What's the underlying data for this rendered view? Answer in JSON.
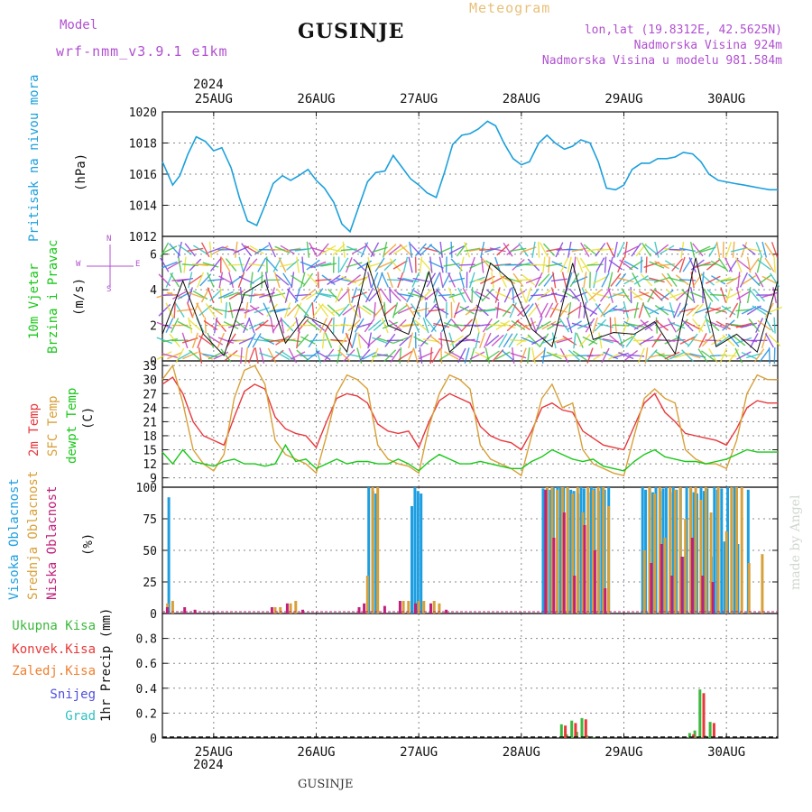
{
  "header": {
    "model_label": "Model",
    "model_name": "wrf-nmm_v3.9.1 e1km",
    "title": "GUSINJE",
    "meteogram_label": "Meteogram",
    "coords": "lon,lat (19.8312E, 42.5625N)",
    "elevation": "Nadmorska Visina 924m",
    "model_elevation": "Nadmorska Visina u modelu 981.584m",
    "year_top": "2024",
    "year_bottom": "2024",
    "footer_title": "GUSINJE",
    "watermark": "made by Angel"
  },
  "colors": {
    "pressure": "#1ca0dc",
    "temp2m": "#e8383c",
    "sfc_temp": "#d8a038",
    "dewpoint": "#18c818",
    "cloud_high": "#1c9ee0",
    "cloud_mid": "#d8a038",
    "cloud_low": "#c0207a",
    "precip_total": "#3cb83c",
    "precip_conv": "#e83838",
    "precip_frozen": "#f08030",
    "precip_snow": "#5050e0",
    "precip_grad": "#30c0c0",
    "accent_purple": "#b050d0"
  },
  "chart_data": [
    {
      "type": "line",
      "title": "Pritisak na nivou mora",
      "ylabel": "(hPa)",
      "ylim": [
        1012,
        1020
      ],
      "yticks": [
        1012,
        1014,
        1016,
        1018,
        1020
      ],
      "grid": true,
      "x_unit": "days from 24AUG 12UTC",
      "x_tick_labels": [
        "25AUG",
        "26AUG",
        "27AUG",
        "28AUG",
        "29AUG",
        "30AUG"
      ],
      "series": [
        {
          "name": "Pritisak na nivou mora",
          "x": [
            0,
            0.1,
            0.17,
            0.25,
            0.33,
            0.42,
            0.5,
            0.58,
            0.67,
            0.75,
            0.83,
            0.92,
            1.0,
            1.08,
            1.17,
            1.25,
            1.33,
            1.42,
            1.5,
            1.58,
            1.67,
            1.75,
            1.83,
            1.92,
            2.0,
            2.08,
            2.17,
            2.25,
            2.33,
            2.42,
            2.5,
            2.58,
            2.67,
            2.75,
            2.83,
            2.92,
            3.0,
            3.08,
            3.17,
            3.25,
            3.33,
            3.42,
            3.5,
            3.58,
            3.67,
            3.75,
            3.83,
            3.92,
            4.0,
            4.08,
            4.17,
            4.25,
            4.33,
            4.42,
            4.5,
            4.58,
            4.67,
            4.75,
            4.83,
            4.92,
            5.0,
            5.08,
            5.17,
            5.25,
            5.33,
            5.42,
            5.5,
            5.58,
            5.67,
            5.75,
            5.83,
            5.92,
            6.0
          ],
          "y": [
            1016.8,
            1015.3,
            1015.9,
            1017.3,
            1018.4,
            1018.1,
            1017.5,
            1017.7,
            1016.4,
            1014.5,
            1013.0,
            1012.7,
            1014.0,
            1015.4,
            1015.9,
            1015.6,
            1015.9,
            1016.3,
            1015.6,
            1015.1,
            1014.2,
            1012.8,
            1012.3,
            1014.0,
            1015.5,
            1016.1,
            1016.2,
            1017.2,
            1016.5,
            1015.7,
            1015.3,
            1014.8,
            1014.5,
            1016.1,
            1017.9,
            1018.5,
            1018.6,
            1018.9,
            1019.4,
            1019.1,
            1018.0,
            1017.0,
            1016.6,
            1016.8,
            1018.0,
            1018.5,
            1018.0,
            1017.6,
            1017.8,
            1018.2,
            1018.0,
            1016.8,
            1015.1,
            1015.0,
            1015.3,
            1016.3,
            1016.7,
            1016.7,
            1017.0,
            1017.0,
            1017.1,
            1017.4,
            1017.3,
            1016.8,
            1016.0,
            1015.6,
            1015.5,
            1015.4,
            1015.3,
            1015.2,
            1015.1,
            1015.0,
            1015.0
          ]
        }
      ]
    },
    {
      "type": "wind",
      "title": "10m Vjetar Brzina i Pravac",
      "ylabel": "(m/s)",
      "ylim": [
        0,
        7
      ],
      "yticks": [
        0,
        2,
        4,
        6
      ],
      "grid": true,
      "x_tick_labels": [
        "25AUG",
        "26AUG",
        "27AUG",
        "28AUG",
        "29AUG",
        "30AUG"
      ],
      "direction_key": {
        "top": "N",
        "left": "W",
        "right": "E",
        "bottom": "S"
      },
      "series": [
        {
          "name": "10m Vjetar Brzina",
          "x": [
            0,
            0.2,
            0.4,
            0.6,
            0.8,
            1.0,
            1.2,
            1.4,
            1.6,
            1.8,
            2.0,
            2.2,
            2.4,
            2.6,
            2.8,
            3.0,
            3.2,
            3.4,
            3.6,
            3.8,
            4.0,
            4.2,
            4.4,
            4.6,
            4.8,
            5.0,
            5.2,
            5.4,
            5.6,
            5.8,
            6.0
          ],
          "y": [
            1.5,
            4.5,
            1.5,
            0.3,
            3.8,
            4.5,
            1.0,
            2.5,
            2.0,
            0.5,
            5.5,
            2.0,
            1.5,
            5.0,
            0.5,
            1.5,
            5.5,
            4.5,
            1.8,
            0.8,
            5.5,
            1.2,
            1.6,
            1.5,
            2.2,
            0.4,
            5.8,
            0.8,
            1.5,
            0.5,
            4.5
          ]
        }
      ]
    },
    {
      "type": "line",
      "title": "2m Temp / SFC Temp / dewpt Temp",
      "ylabel": "(C)",
      "ylim": [
        7,
        34
      ],
      "yticks": [
        9,
        12,
        15,
        18,
        21,
        24,
        27,
        30,
        33
      ],
      "grid": true,
      "x_tick_labels": [
        "25AUG",
        "26AUG",
        "27AUG",
        "28AUG",
        "29AUG",
        "30AUG"
      ],
      "series": [
        {
          "name": "2m Temp",
          "x": [
            0,
            0.1,
            0.2,
            0.3,
            0.4,
            0.5,
            0.6,
            0.7,
            0.8,
            0.9,
            1.0,
            1.1,
            1.2,
            1.3,
            1.4,
            1.5,
            1.6,
            1.7,
            1.8,
            1.9,
            2.0,
            2.1,
            2.2,
            2.3,
            2.4,
            2.5,
            2.6,
            2.7,
            2.8,
            2.9,
            3.0,
            3.1,
            3.2,
            3.3,
            3.4,
            3.5,
            3.6,
            3.7,
            3.8,
            3.9,
            4.0,
            4.1,
            4.2,
            4.3,
            4.4,
            4.5,
            4.6,
            4.7,
            4.8,
            4.9,
            5.0,
            5.1,
            5.2,
            5.3,
            5.4,
            5.5,
            5.6,
            5.7,
            5.8,
            5.9,
            6.0
          ],
          "y": [
            29,
            30.5,
            27,
            21,
            18,
            17,
            16,
            22,
            27.5,
            29,
            28,
            22,
            19.5,
            18.5,
            18,
            15.5,
            21,
            26,
            27,
            26.5,
            25,
            20.5,
            19,
            18.5,
            19,
            15.5,
            21,
            25.5,
            27,
            26,
            25,
            20,
            18,
            17,
            16.5,
            15,
            19,
            24,
            25,
            23.5,
            23,
            19,
            17.5,
            16,
            15.5,
            15,
            20,
            25,
            27,
            23,
            21,
            18.5,
            18,
            17.5,
            17,
            16,
            19.5,
            24,
            25.5,
            25,
            25
          ]
        },
        {
          "name": "SFC Temp",
          "x": [
            0,
            0.1,
            0.2,
            0.3,
            0.4,
            0.5,
            0.6,
            0.7,
            0.8,
            0.9,
            1.0,
            1.1,
            1.2,
            1.3,
            1.4,
            1.5,
            1.6,
            1.7,
            1.8,
            1.9,
            2.0,
            2.1,
            2.2,
            2.3,
            2.4,
            2.5,
            2.6,
            2.7,
            2.8,
            2.9,
            3.0,
            3.1,
            3.2,
            3.3,
            3.4,
            3.5,
            3.6,
            3.7,
            3.8,
            3.9,
            4.0,
            4.1,
            4.2,
            4.3,
            4.4,
            4.5,
            4.6,
            4.7,
            4.8,
            4.9,
            5.0,
            5.1,
            5.2,
            5.3,
            5.4,
            5.5,
            5.6,
            5.7,
            5.8,
            5.9,
            6.0
          ],
          "y": [
            30,
            33,
            25,
            15,
            12,
            10.5,
            14,
            26,
            32,
            33,
            29,
            17,
            14,
            13,
            12,
            10,
            18,
            27,
            31,
            30,
            28,
            16,
            13,
            12,
            11.5,
            10,
            20,
            27,
            31,
            30,
            28,
            16,
            13,
            12,
            11,
            9.5,
            18,
            26,
            29,
            24,
            25,
            15,
            12,
            11,
            10,
            9.5,
            18,
            26,
            28,
            26,
            25,
            15,
            13,
            12,
            12,
            11,
            17,
            27,
            31,
            30,
            30
          ]
        },
        {
          "name": "dewpt Temp",
          "x": [
            0,
            0.1,
            0.2,
            0.3,
            0.4,
            0.5,
            0.6,
            0.7,
            0.8,
            0.9,
            1.0,
            1.1,
            1.2,
            1.3,
            1.4,
            1.5,
            1.6,
            1.7,
            1.8,
            1.9,
            2.0,
            2.1,
            2.2,
            2.3,
            2.4,
            2.5,
            2.6,
            2.7,
            2.8,
            2.9,
            3.0,
            3.1,
            3.2,
            3.3,
            3.4,
            3.5,
            3.6,
            3.7,
            3.8,
            3.9,
            4.0,
            4.1,
            4.2,
            4.3,
            4.4,
            4.5,
            4.6,
            4.7,
            4.8,
            4.9,
            5.0,
            5.1,
            5.2,
            5.3,
            5.4,
            5.5,
            5.6,
            5.7,
            5.8,
            5.9,
            6.0
          ],
          "y": [
            14.5,
            12,
            15,
            12.5,
            12,
            11.5,
            12.5,
            13,
            12,
            12,
            11.5,
            12,
            16,
            12.5,
            13,
            11,
            12,
            13,
            12,
            12.5,
            12.5,
            12,
            12,
            13,
            12,
            10.5,
            12.5,
            14,
            13,
            12,
            12,
            12.5,
            12,
            11.5,
            11,
            11,
            12.5,
            13.5,
            15,
            14,
            13,
            12.5,
            13,
            11.5,
            11,
            10.5,
            12.5,
            14,
            15,
            13.5,
            13,
            12.5,
            12.5,
            12,
            12.5,
            13,
            14,
            15,
            14.5,
            14.5,
            14.5
          ]
        }
      ]
    },
    {
      "type": "bar",
      "title": "Visoka Oblacnost / Srednja Oblacnost / Niska Oblacnost",
      "ylabel": "(%)",
      "ylim": [
        0,
        100
      ],
      "yticks": [
        0,
        25,
        50,
        75,
        100
      ],
      "grid": true,
      "x_tick_labels": [
        "25AUG",
        "26AUG",
        "27AUG",
        "28AUG",
        "29AUG",
        "30AUG"
      ],
      "series": [
        {
          "name": "Visoka Oblacnost",
          "x": [
            0.08,
            2.03,
            2.07,
            2.1,
            2.13,
            2.45,
            2.48,
            2.51,
            2.54,
            3.73,
            3.77,
            3.8,
            3.83,
            3.87,
            3.9,
            3.93,
            3.97,
            4.0,
            4.03,
            4.07,
            4.1,
            4.13,
            4.17,
            4.2,
            4.23,
            4.27,
            4.3,
            4.33,
            4.37,
            4.7,
            4.73,
            4.77,
            4.8,
            4.83,
            4.87,
            4.9,
            4.93,
            4.97,
            5.0,
            5.03,
            5.07,
            5.1,
            5.13,
            5.17,
            5.2,
            5.23,
            5.27,
            5.3,
            5.33,
            5.37,
            5.4,
            5.43,
            5.47,
            5.5,
            5.53,
            5.57,
            5.6,
            5.63,
            5.67,
            5.73
          ],
          "y": [
            92,
            100,
            97,
            95,
            0,
            85,
            100,
            97,
            95,
            99,
            99,
            98,
            100,
            100,
            100,
            100,
            99,
            98,
            97,
            95,
            100,
            99,
            96,
            100,
            99,
            97,
            100,
            98,
            100,
            100,
            98,
            100,
            96,
            100,
            97,
            99,
            100,
            96,
            100,
            98,
            100,
            45,
            100,
            99,
            96,
            95,
            100,
            97,
            99,
            45,
            100,
            98,
            99,
            57,
            100,
            100,
            100,
            55,
            0,
            98
          ]
        },
        {
          "name": "Srednja Oblacnost",
          "x": [
            0.05,
            0.1,
            1.1,
            1.15,
            1.25,
            1.3,
            2.0,
            2.05,
            2.1,
            2.35,
            2.4,
            2.5,
            2.55,
            2.65,
            2.7,
            3.75,
            3.8,
            3.85,
            3.9,
            3.95,
            4.0,
            4.05,
            4.1,
            4.15,
            4.2,
            4.25,
            4.3,
            4.35,
            4.7,
            4.75,
            4.8,
            4.85,
            4.9,
            4.95,
            5.0,
            5.05,
            5.1,
            5.15,
            5.2,
            5.25,
            5.3,
            5.35,
            5.42,
            5.5,
            5.55,
            5.6,
            5.65,
            5.72,
            5.85
          ],
          "y": [
            8,
            10,
            5,
            5,
            8,
            10,
            30,
            100,
            100,
            10,
            10,
            10,
            10,
            10,
            8,
            100,
            100,
            98,
            100,
            100,
            95,
            100,
            80,
            100,
            98,
            100,
            100,
            85,
            50,
            100,
            95,
            100,
            60,
            100,
            98,
            100,
            75,
            100,
            100,
            90,
            100,
            80,
            100,
            65,
            100,
            100,
            100,
            40,
            47
          ]
        },
        {
          "name": "Niska Oblacnost",
          "x": [
            0.03,
            0.2,
            0.3,
            1.05,
            1.2,
            1.35,
            1.9,
            1.95,
            2.15,
            2.3,
            2.45,
            2.6,
            2.75,
            3.72,
            3.8,
            3.9,
            4.0,
            4.1,
            4.2,
            4.3,
            4.75,
            4.85,
            4.95,
            5.05,
            5.15,
            5.25,
            5.35
          ],
          "y": [
            5,
            5,
            3,
            5,
            8,
            3,
            5,
            8,
            6,
            10,
            8,
            8,
            3,
            98,
            60,
            80,
            30,
            70,
            50,
            20,
            40,
            55,
            30,
            45,
            60,
            30,
            25
          ]
        }
      ]
    },
    {
      "type": "bar",
      "title": "1hr Precip",
      "ylabel": "1hr Precip (mm)",
      "ylim": [
        0,
        1.0
      ],
      "yticks": [
        0,
        0.2,
        0.4,
        0.6,
        0.8
      ],
      "grid": true,
      "x_tick_labels": [
        "25AUG",
        "26AUG",
        "27AUG",
        "28AUG",
        "29AUG",
        "30AUG"
      ],
      "legend": [
        "Ukupna Kisa",
        "Konvek.Kisa",
        "Zaledj.Kisa",
        "Snijeg",
        "Grad"
      ],
      "series": [
        {
          "name": "Ukupna Kisa",
          "x": [
            3.9,
            3.95,
            4.0,
            4.05,
            4.1,
            4.15,
            4.2,
            5.15,
            5.2,
            5.25,
            5.3,
            5.35
          ],
          "y": [
            0.11,
            0.03,
            0.14,
            0.05,
            0.16,
            0.02,
            0.01,
            0.04,
            0.06,
            0.39,
            0.02,
            0.13
          ]
        },
        {
          "name": "Konvek.Kisa",
          "x": [
            3.92,
            4.02,
            4.12,
            5.17,
            5.27,
            5.37
          ],
          "y": [
            0.1,
            0.12,
            0.15,
            0.03,
            0.36,
            0.12
          ]
        }
      ]
    }
  ]
}
